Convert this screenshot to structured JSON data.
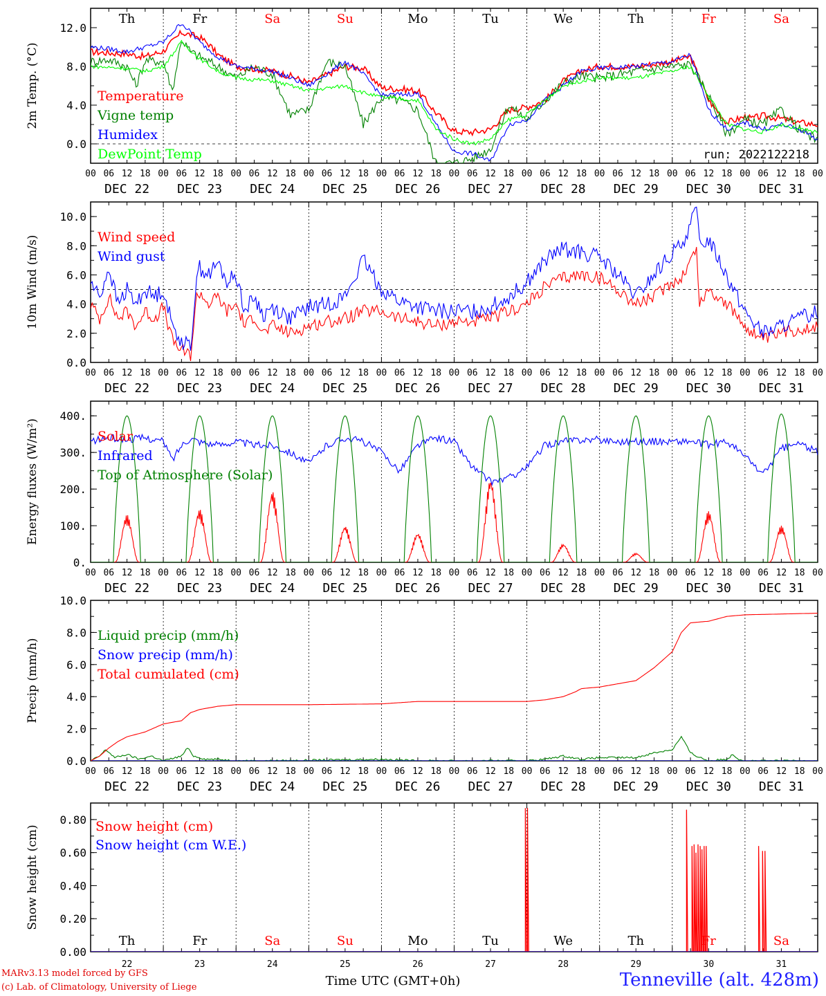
{
  "page": {
    "credit_line1": "MARv3.13 model forced by GFS",
    "credit_line2": "(c) Lab. of Climatology, University of Liege",
    "station": "Tenneville (alt. 428m)",
    "xlabel": "Time UTC (GMT+0h)"
  },
  "colors": {
    "red": "#ff0000",
    "darkgreen": "#008000",
    "blue": "#0000ff",
    "lightgreen": "#00ff00",
    "weekend": "#ff0000",
    "weekday": "#000000"
  },
  "days": {
    "weekday_labels": [
      "Th",
      "Fr",
      "Sa",
      "Su",
      "Mo",
      "Tu",
      "We",
      "Th",
      "Fr",
      "Sa"
    ],
    "weekend_flags": [
      false,
      false,
      true,
      true,
      false,
      false,
      false,
      false,
      true,
      true
    ],
    "date_labels": [
      "DEC 22",
      "DEC 23",
      "DEC 24",
      "DEC 25",
      "DEC 26",
      "DEC 27",
      "DEC 28",
      "DEC 29",
      "DEC 30",
      "DEC 31"
    ],
    "day_numbers": [
      "22",
      "23",
      "24",
      "25",
      "26",
      "27",
      "28",
      "29",
      "30",
      "31"
    ],
    "hour_ticks": [
      "00",
      "06",
      "12",
      "18"
    ],
    "final_hour": "00"
  },
  "chart_data": [
    {
      "type": "line",
      "ylabel": "2m Temp. (°C)",
      "ylim": [
        -2,
        14
      ],
      "yticks": [
        "0.0",
        "4.0",
        "8.0",
        "12.0"
      ],
      "yticks_values": [
        0,
        4,
        8,
        12
      ],
      "run_label": "run: 2022122218",
      "dashed_ref": 0,
      "x_unit": "hours since DEC 22 00 UTC",
      "series": [
        {
          "name": "Temperature",
          "color_key": "red",
          "x": [
            0,
            12,
            18,
            24,
            30,
            36,
            39,
            42,
            48,
            60,
            66,
            72,
            84,
            90,
            96,
            108,
            114,
            120,
            126,
            132,
            138,
            144,
            150,
            156,
            162,
            168,
            180,
            192,
            198,
            204,
            210,
            216,
            218,
            222,
            228,
            234,
            240
          ],
          "values": [
            9.5,
            9.3,
            9.0,
            9.6,
            11.5,
            11.0,
            10.3,
            9.2,
            8.0,
            7.5,
            7.0,
            6.3,
            8.0,
            7.8,
            5.8,
            5.5,
            3.2,
            1.3,
            1.2,
            1.5,
            3.5,
            3.8,
            4.5,
            6.5,
            7.5,
            8.0,
            8.0,
            8.5,
            9.0,
            4.5,
            2.2,
            2.8,
            2.6,
            2.9,
            2.6,
            2.2,
            2.0
          ]
        },
        {
          "name": "Vigne temp",
          "color_key": "darkgreen",
          "x": [
            0,
            6,
            12,
            15,
            18,
            24,
            27,
            30,
            33,
            36,
            42,
            48,
            54,
            60,
            66,
            72,
            78,
            84,
            90,
            96,
            102,
            108,
            114,
            120,
            126,
            132,
            138,
            144,
            150,
            156,
            162,
            168,
            180,
            192,
            198,
            204,
            210,
            216,
            222,
            228,
            234,
            240
          ],
          "values": [
            8.5,
            8.7,
            8.0,
            6.0,
            8.6,
            8.5,
            5.5,
            10.8,
            9.5,
            9.0,
            8.0,
            6.8,
            8.0,
            7.2,
            3.0,
            3.5,
            8.5,
            8.0,
            2.0,
            4.8,
            4.5,
            3.5,
            -2.0,
            -2.0,
            -1.5,
            -0.5,
            4.0,
            2.5,
            4.5,
            6.3,
            7.0,
            6.8,
            7.5,
            8.0,
            8.2,
            5.0,
            1.0,
            2.5,
            2.0,
            3.5,
            1.5,
            0.3
          ]
        },
        {
          "name": "Humidex",
          "color_key": "blue",
          "x": [
            0,
            6,
            12,
            18,
            24,
            30,
            36,
            42,
            48,
            60,
            66,
            72,
            84,
            90,
            96,
            108,
            114,
            120,
            126,
            132,
            138,
            144,
            150,
            156,
            162,
            168,
            180,
            192,
            198,
            204,
            210,
            216,
            222,
            228,
            234,
            240
          ],
          "values": [
            10.0,
            9.8,
            9.5,
            10.0,
            10.5,
            12.5,
            10.5,
            9.0,
            8.0,
            7.5,
            6.8,
            6.0,
            8.5,
            7.2,
            5.0,
            5.2,
            2.0,
            -0.8,
            -1.0,
            -1.8,
            2.0,
            2.5,
            4.5,
            6.0,
            7.5,
            7.8,
            8.0,
            8.5,
            9.2,
            3.5,
            1.5,
            2.2,
            1.5,
            2.0,
            1.5,
            0.5
          ]
        },
        {
          "name": "DewPoint Temp",
          "color_key": "lightgreen",
          "x": [
            0,
            12,
            18,
            24,
            30,
            36,
            42,
            48,
            60,
            72,
            84,
            90,
            96,
            108,
            114,
            120,
            126,
            132,
            138,
            144,
            150,
            156,
            162,
            168,
            180,
            192,
            198,
            204,
            210,
            216,
            222,
            228,
            234,
            240
          ],
          "values": [
            8.0,
            7.8,
            7.5,
            8.0,
            10.5,
            8.8,
            7.5,
            6.8,
            6.5,
            5.5,
            6.0,
            5.3,
            4.8,
            4.5,
            1.5,
            0.5,
            0.0,
            0.5,
            2.5,
            3.0,
            4.5,
            6.0,
            6.5,
            6.8,
            6.8,
            7.5,
            8.0,
            5.0,
            2.0,
            1.5,
            1.2,
            2.0,
            1.5,
            1.2
          ]
        }
      ]
    },
    {
      "type": "line",
      "ylabel": "10m Wind (m/s)",
      "ylim": [
        0,
        11
      ],
      "yticks": [
        "0.0",
        "2.0",
        "4.0",
        "6.0",
        "8.0",
        "10.0"
      ],
      "yticks_values": [
        0,
        2,
        4,
        6,
        8,
        10
      ],
      "dashed_ref": 5,
      "x_unit": "hours since DEC 22 00 UTC",
      "series": [
        {
          "name": "Wind speed",
          "color_key": "red",
          "x": [
            0,
            3,
            6,
            9,
            12,
            15,
            18,
            21,
            24,
            27,
            30,
            33,
            35,
            36,
            39,
            42,
            45,
            48,
            51,
            54,
            57,
            60,
            66,
            72,
            78,
            84,
            90,
            96,
            102,
            108,
            114,
            120,
            126,
            132,
            138,
            144,
            150,
            156,
            162,
            168,
            174,
            180,
            186,
            192,
            195,
            198,
            200,
            201,
            204,
            210,
            216,
            222,
            228,
            234,
            240
          ],
          "values": [
            4.0,
            3.0,
            4.5,
            3.0,
            3.5,
            2.5,
            3.5,
            3.0,
            3.8,
            1.5,
            0.8,
            0.5,
            4.5,
            4.8,
            4.0,
            4.5,
            3.5,
            4.0,
            2.5,
            3.2,
            2.0,
            2.5,
            2.0,
            2.5,
            2.8,
            3.0,
            3.5,
            3.5,
            3.0,
            2.8,
            2.5,
            2.8,
            2.8,
            3.0,
            3.5,
            4.0,
            5.2,
            5.8,
            6.0,
            5.8,
            5.0,
            4.0,
            4.5,
            5.5,
            5.8,
            7.0,
            7.8,
            4.0,
            5.0,
            4.0,
            2.5,
            1.5,
            2.0,
            2.3,
            2.5
          ]
        },
        {
          "name": "Wind gust",
          "color_key": "blue",
          "x": [
            0,
            3,
            6,
            9,
            12,
            15,
            18,
            21,
            24,
            27,
            30,
            33,
            35,
            36,
            39,
            42,
            45,
            48,
            51,
            54,
            57,
            60,
            66,
            72,
            78,
            84,
            90,
            96,
            102,
            108,
            114,
            120,
            126,
            132,
            138,
            144,
            150,
            156,
            162,
            168,
            174,
            180,
            186,
            192,
            195,
            198,
            200,
            201,
            204,
            210,
            216,
            222,
            228,
            234,
            240
          ],
          "values": [
            5.5,
            4.5,
            6.5,
            4.0,
            5.0,
            4.0,
            5.0,
            4.5,
            5.0,
            2.5,
            1.5,
            1.0,
            6.0,
            6.5,
            6.0,
            6.8,
            5.5,
            6.0,
            3.5,
            4.5,
            3.2,
            3.8,
            3.0,
            3.8,
            4.0,
            4.5,
            7.0,
            5.0,
            4.2,
            3.8,
            3.5,
            3.5,
            3.5,
            3.8,
            4.5,
            5.5,
            7.0,
            7.8,
            7.5,
            7.2,
            6.0,
            4.5,
            6.0,
            7.5,
            8.0,
            9.5,
            10.5,
            8.0,
            8.5,
            6.0,
            3.5,
            2.0,
            2.5,
            3.0,
            3.5
          ]
        }
      ]
    },
    {
      "type": "line",
      "ylabel": "Energy fluxes (W/m²)",
      "ylim": [
        0,
        440
      ],
      "yticks": [
        "0.",
        "100.",
        "200.",
        "300.",
        "400."
      ],
      "yticks_values": [
        0,
        100,
        200,
        300,
        400
      ],
      "x_unit": "hours since DEC 22 00 UTC",
      "series": [
        {
          "name": "Solar",
          "color_key": "red",
          "daily_peaks": [
            130,
            145,
            195,
            100,
            80,
            230,
            50,
            25,
            140,
            100
          ],
          "daily_window_hours": [
            8,
            16
          ]
        },
        {
          "name": "Infrared",
          "color_key": "blue",
          "x": [
            0,
            6,
            12,
            18,
            24,
            27,
            30,
            33,
            36,
            42,
            48,
            54,
            60,
            66,
            72,
            78,
            84,
            90,
            96,
            102,
            108,
            114,
            120,
            126,
            132,
            138,
            144,
            150,
            156,
            162,
            168,
            174,
            180,
            186,
            192,
            198,
            204,
            210,
            216,
            222,
            228,
            234,
            240
          ],
          "values": [
            330,
            340,
            335,
            340,
            330,
            280,
            320,
            340,
            330,
            320,
            330,
            320,
            320,
            300,
            270,
            320,
            340,
            330,
            300,
            250,
            320,
            340,
            330,
            260,
            220,
            230,
            260,
            320,
            330,
            335,
            335,
            330,
            330,
            330,
            330,
            330,
            320,
            330,
            290,
            240,
            310,
            325,
            300
          ]
        },
        {
          "name": "Top of Atmosphere (Solar)",
          "color_key": "darkgreen",
          "daily_peaks": [
            400,
            400,
            400,
            400,
            400,
            400,
            400,
            400,
            400,
            405
          ],
          "daily_window_hours": [
            7.5,
            16.5
          ]
        }
      ]
    },
    {
      "type": "line",
      "ylabel": "Precip (mm/h)",
      "ylim": [
        0,
        10
      ],
      "yticks": [
        "0.0",
        "2.0",
        "4.0",
        "6.0",
        "8.0",
        "10.0"
      ],
      "yticks_values": [
        0,
        2,
        4,
        6,
        8,
        10
      ],
      "x_unit": "hours since DEC 22 00 UTC",
      "series": [
        {
          "name": "Liquid precip (mm/h)",
          "color_key": "darkgreen",
          "x": [
            0,
            3,
            5,
            8,
            12,
            16,
            20,
            24,
            30,
            32,
            34,
            38,
            42,
            48,
            60,
            96,
            108,
            144,
            150,
            156,
            162,
            168,
            180,
            186,
            192,
            195,
            198,
            200,
            204,
            210,
            212,
            214,
            216,
            240
          ],
          "values": [
            0.0,
            0.3,
            0.7,
            0.2,
            0.4,
            0.1,
            0.3,
            0.0,
            0.3,
            0.8,
            0.3,
            0.1,
            0.1,
            0.0,
            0.0,
            0.1,
            0.0,
            0.0,
            0.1,
            0.3,
            0.1,
            0.2,
            0.2,
            0.5,
            0.7,
            1.5,
            0.5,
            0.3,
            0.0,
            0.1,
            0.4,
            0.1,
            0.0,
            0.0
          ]
        },
        {
          "name": "Snow precip (mm/h)",
          "color_key": "blue",
          "x": [
            0,
            240
          ],
          "values": [
            0,
            0
          ]
        },
        {
          "name": "Total cumulated (cm)",
          "color_key": "red",
          "x": [
            0,
            3,
            6,
            9,
            12,
            18,
            24,
            30,
            33,
            36,
            42,
            48,
            72,
            96,
            108,
            120,
            144,
            150,
            156,
            160,
            162,
            168,
            174,
            180,
            186,
            192,
            195,
            198,
            204,
            210,
            216,
            240
          ],
          "values": [
            0.0,
            0.3,
            0.8,
            1.2,
            1.5,
            1.8,
            2.3,
            2.5,
            3.0,
            3.2,
            3.4,
            3.5,
            3.5,
            3.55,
            3.7,
            3.7,
            3.7,
            3.8,
            4.0,
            4.3,
            4.5,
            4.6,
            4.8,
            5.0,
            5.8,
            6.8,
            8.0,
            8.6,
            8.7,
            9.0,
            9.1,
            9.2
          ]
        }
      ]
    },
    {
      "type": "line",
      "ylabel": "Snow height (cm)",
      "ylim": [
        0,
        0.9
      ],
      "yticks": [
        "0.00",
        "0.20",
        "0.40",
        "0.60",
        "0.80"
      ],
      "yticks_values": [
        0,
        0.2,
        0.4,
        0.6,
        0.8
      ],
      "x_unit": "hours since DEC 22 00 UTC",
      "series": [
        {
          "name": "Snow height (cm)",
          "color_key": "red",
          "spikes_x": [
            143.5,
            144.2,
            196.7,
            198.5,
            199.2,
            199.8,
            200.5,
            201.2,
            201.8,
            202.5,
            203.2,
            220.5,
            221.8,
            222.6
          ],
          "spikes_values": [
            0.87,
            0.87,
            0.86,
            0.64,
            0.65,
            0.6,
            0.65,
            0.64,
            0.62,
            0.64,
            0.64,
            0.64,
            0.61,
            0.61
          ]
        },
        {
          "name": "Snow height (cm W.E.)",
          "color_key": "blue",
          "x": [
            0,
            240
          ],
          "values": [
            0,
            0
          ]
        }
      ]
    }
  ]
}
